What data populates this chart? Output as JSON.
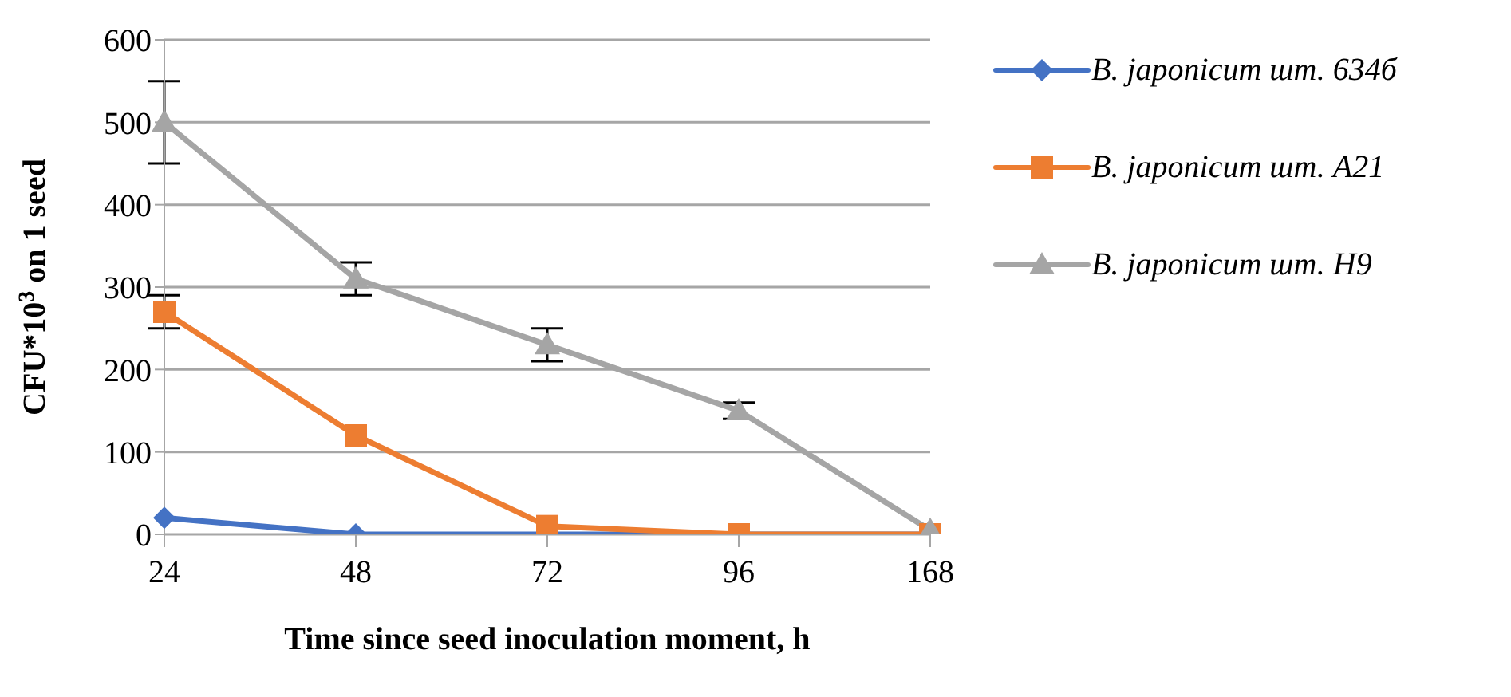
{
  "chart_data": {
    "type": "line",
    "xlabel": "Time since seed inoculation moment, h",
    "ylabel": "CFU*10$^{3}$ on 1 seed",
    "categories": [
      "24",
      "48",
      "72",
      "96",
      "168"
    ],
    "ylim": [
      0,
      600
    ],
    "yticks": [
      0,
      100,
      200,
      300,
      400,
      500,
      600
    ],
    "grid": "y",
    "legend": "right",
    "series": [
      {
        "name": "B. japonicum шт. 634б",
        "color": "#4472c4",
        "marker": "diamond",
        "values": [
          20,
          0,
          0,
          0,
          0
        ]
      },
      {
        "name": "B. japonicum шт. A21",
        "color": "#ed7d31",
        "marker": "square",
        "values": [
          270,
          120,
          10,
          0,
          0
        ],
        "errors": [
          20,
          null,
          null,
          null,
          null
        ]
      },
      {
        "name": "B. japonicum шт. H9",
        "color": "#a5a5a5",
        "marker": "triangle",
        "values": [
          500,
          310,
          230,
          150,
          5
        ],
        "errors": [
          50,
          20,
          20,
          10,
          null
        ]
      }
    ]
  }
}
